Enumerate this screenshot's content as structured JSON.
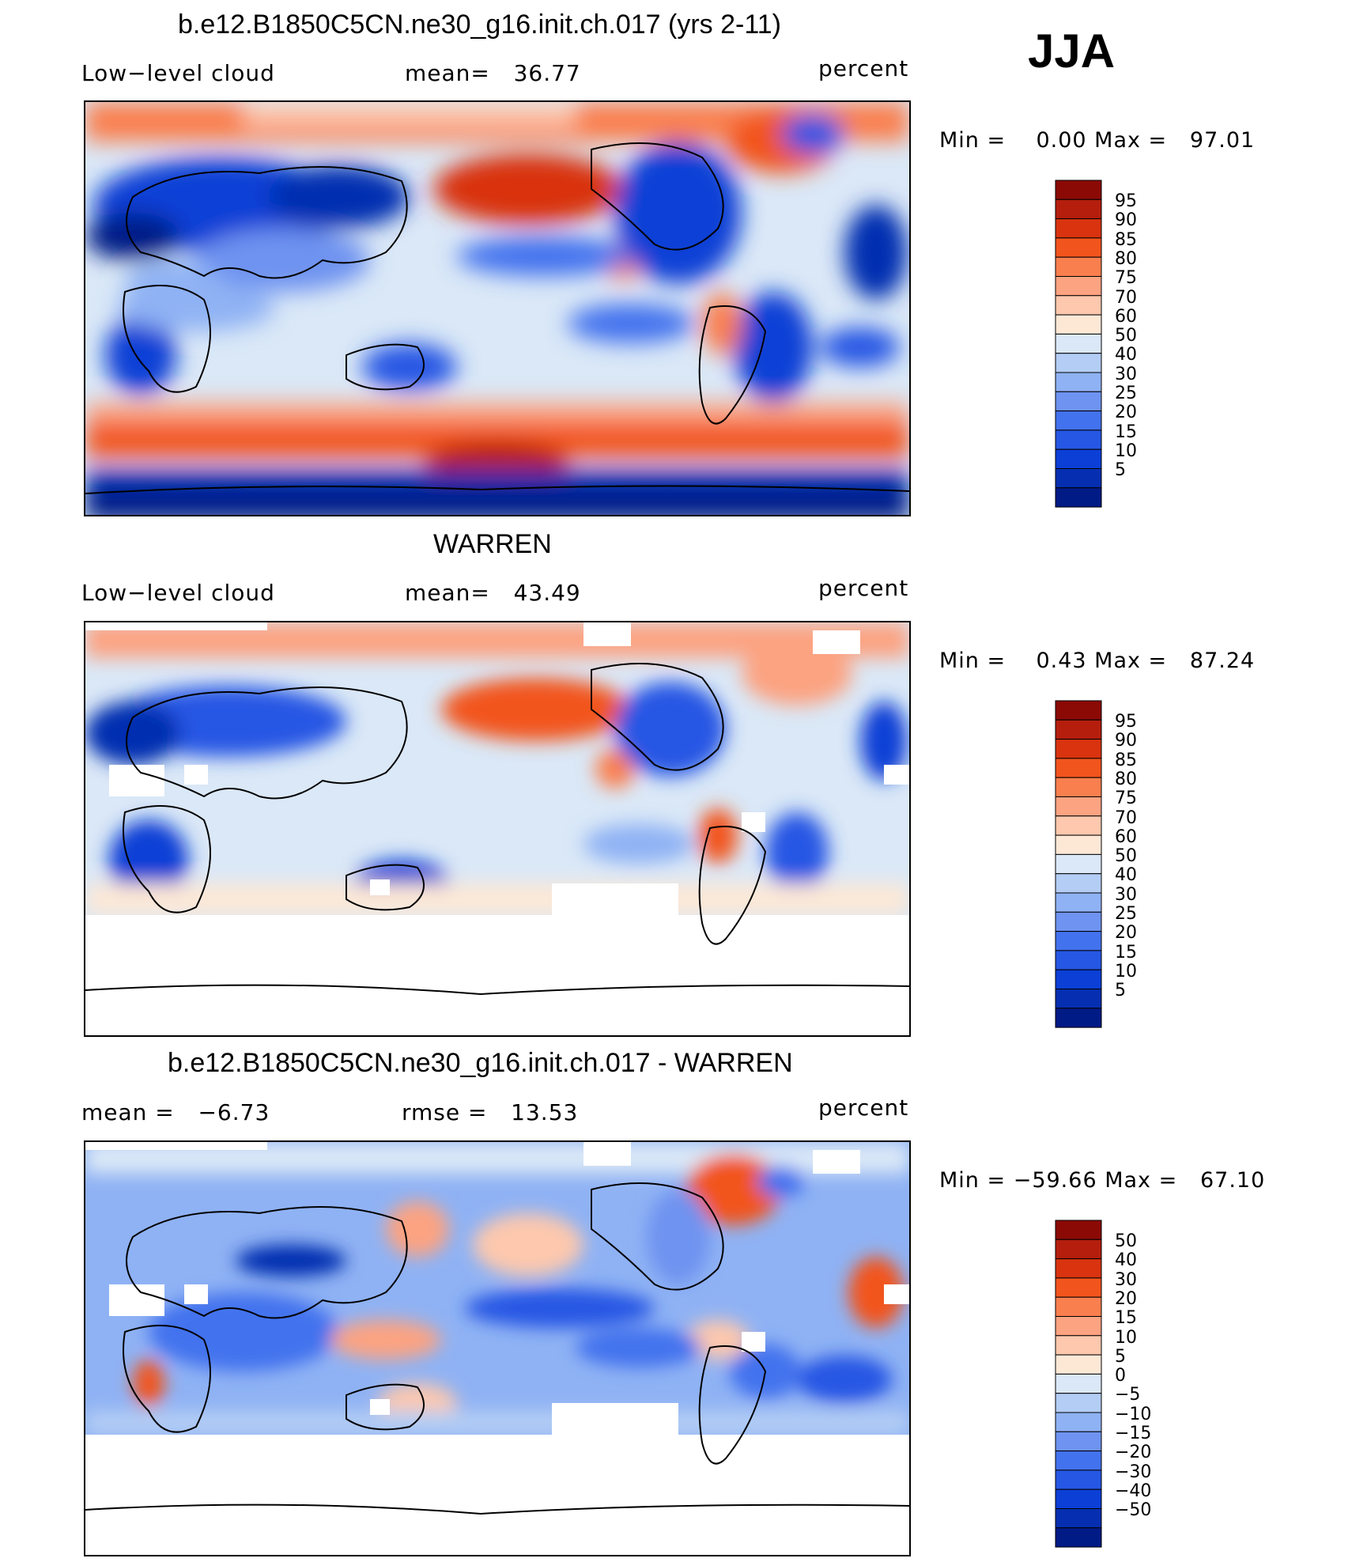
{
  "header_label": "JJA",
  "legend_colors": [
    "#8b0a05",
    "#b51e0d",
    "#d9330f",
    "#f2541d",
    "#fa7f4e",
    "#fca381",
    "#fdc8ad",
    "#fde8d6",
    "#dae8f7",
    "#b3cdf4",
    "#8fb2f4",
    "#6e93f0",
    "#4372ee",
    "#2657e4",
    "#0b3fd6",
    "#052fb0",
    "#001a86"
  ],
  "panels": [
    {
      "id": "model",
      "title": "b.e12.B1850C5CN.ne30_g16.init.ch.017 (yrs 2-11)",
      "left_text": "Low−level cloud",
      "center_text": "mean=   36.77",
      "right_text": "percent",
      "min_max": "Min =    0.00 Max =   97.01",
      "colorbar_labels": [
        "95",
        "90",
        "85",
        "80",
        "75",
        "70",
        "60",
        "50",
        "40",
        "30",
        "25",
        "20",
        "15",
        "10",
        "5"
      ]
    },
    {
      "id": "obs",
      "title": "WARREN",
      "left_text": "Low−level cloud",
      "center_text": "mean=   43.49",
      "right_text": "percent",
      "min_max": "Min =    0.43 Max =   87.24",
      "colorbar_labels": [
        "95",
        "90",
        "85",
        "80",
        "75",
        "70",
        "60",
        "50",
        "40",
        "30",
        "25",
        "20",
        "15",
        "10",
        "5"
      ]
    },
    {
      "id": "diff",
      "title": "b.e12.B1850C5CN.ne30_g16.init.ch.017 - WARREN",
      "left_text": "mean =   −6.73",
      "center_text": "rmse =   13.53",
      "right_text": "percent",
      "min_max": "Min = −59.66 Max =   67.10",
      "colorbar_labels": [
        "50",
        "40",
        "30",
        "20",
        "15",
        "10",
        "5",
        "0",
        "−5",
        "−10",
        "−15",
        "−20",
        "−30",
        "−40",
        "−50"
      ]
    }
  ]
}
